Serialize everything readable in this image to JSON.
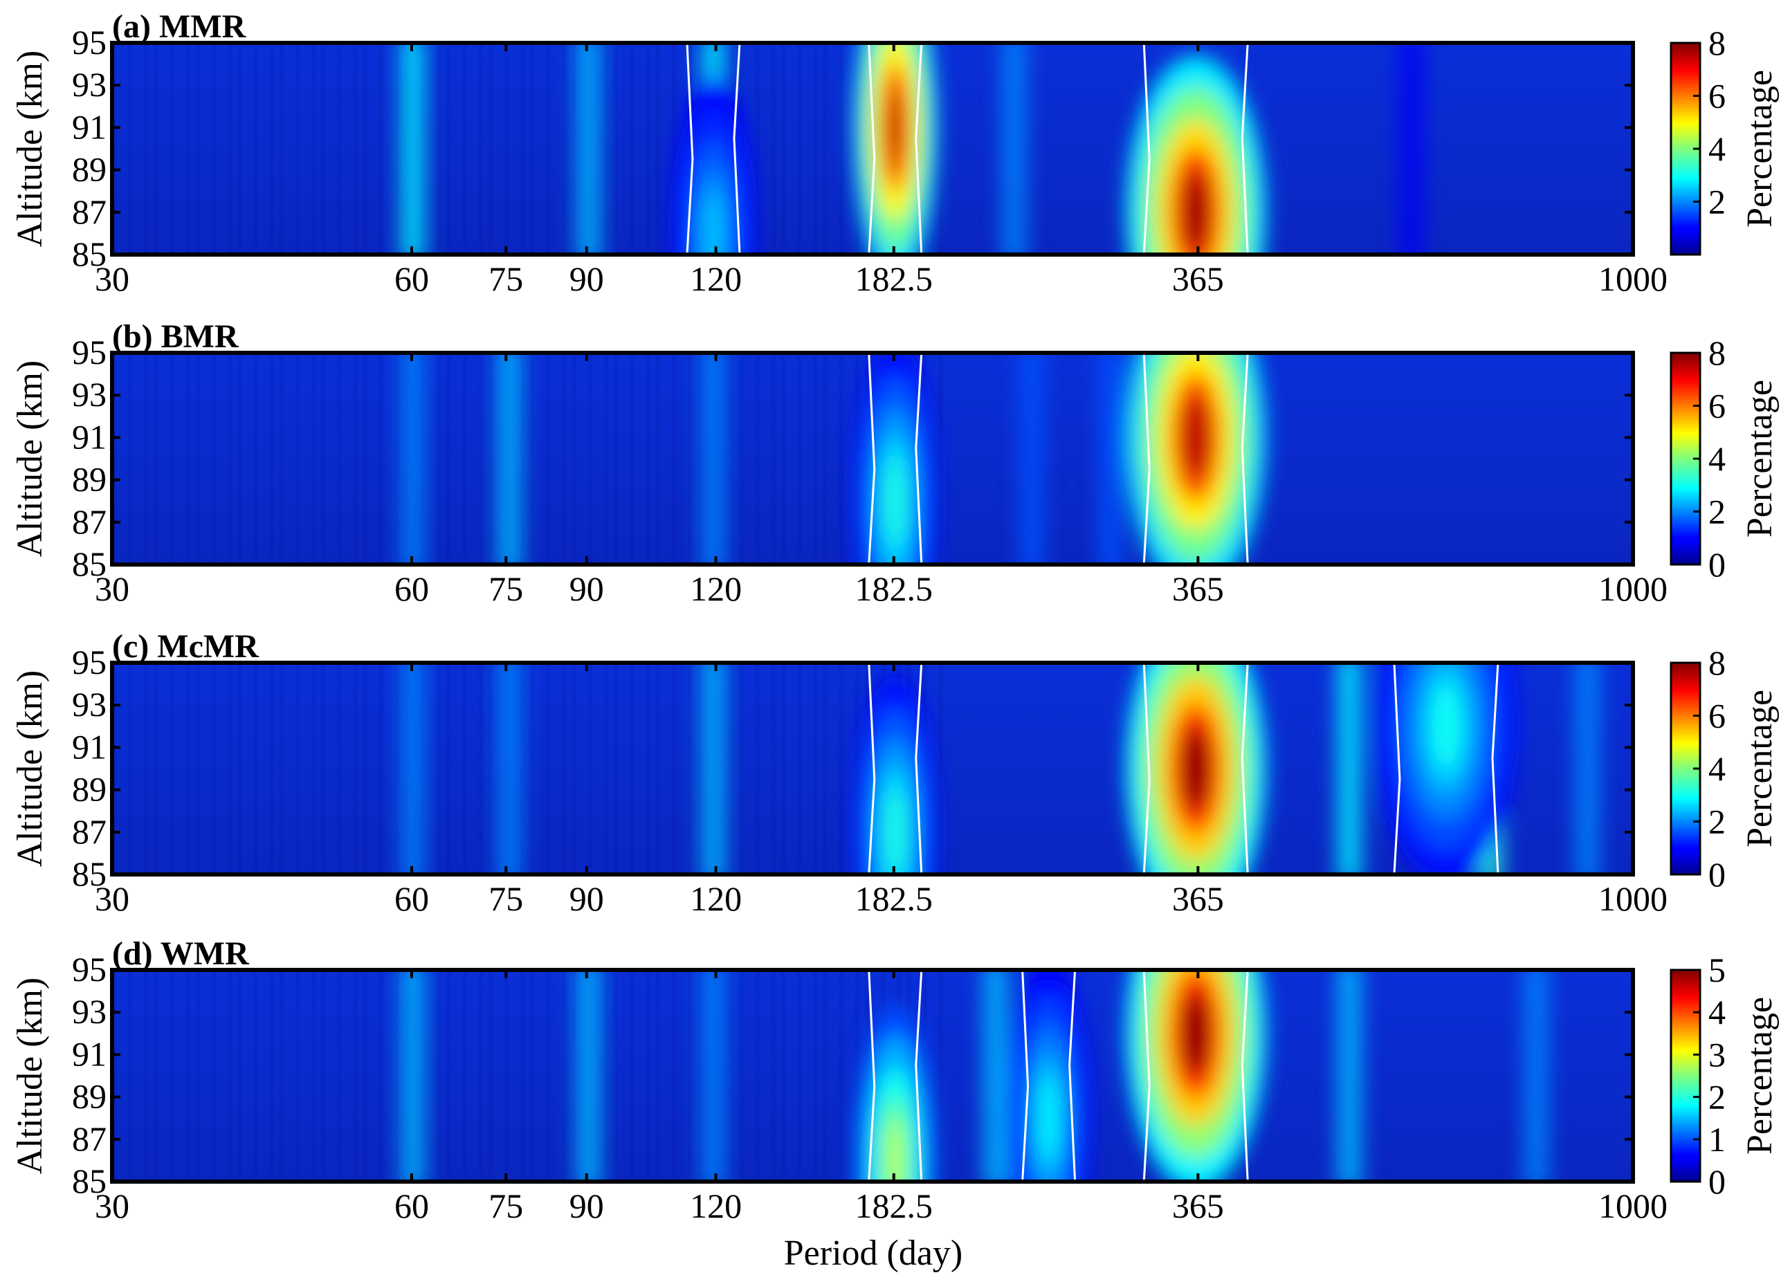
{
  "figure": {
    "xlabel": "Period (day)"
  },
  "chart_data": [
    {
      "type": "heatmap",
      "title": "(a) MMR",
      "ylabel": "Altitude (km)",
      "colorbar_label": "Percentage",
      "x_ticks": [
        "30",
        "60",
        "75",
        "90",
        "120",
        "182.5",
        "365",
        "1000"
      ],
      "y_ticks": [
        "85",
        "87",
        "89",
        "91",
        "93",
        "95"
      ],
      "cbar_ticks": [
        "2",
        "4",
        "6",
        "8"
      ],
      "xlim": [
        30,
        1000
      ],
      "ylim": [
        85,
        95
      ],
      "clim": [
        0,
        8
      ],
      "peaks": [
        {
          "period": 182.5,
          "altitude": 91,
          "value": 7.5
        },
        {
          "period": 365,
          "altitude": 87,
          "value": 7.8
        },
        {
          "period": 120,
          "altitude": 86,
          "value": 2.5
        }
      ]
    },
    {
      "type": "heatmap",
      "title": "(b) BMR",
      "ylabel": "Altitude (km)",
      "colorbar_label": "Percentage",
      "x_ticks": [
        "30",
        "60",
        "75",
        "90",
        "120",
        "182.5",
        "365",
        "1000"
      ],
      "y_ticks": [
        "85",
        "87",
        "89",
        "91",
        "93",
        "95"
      ],
      "cbar_ticks": [
        "0",
        "2",
        "4",
        "6",
        "8"
      ],
      "xlim": [
        30,
        1000
      ],
      "ylim": [
        85,
        95
      ],
      "clim": [
        0,
        8
      ],
      "peaks": [
        {
          "period": 365,
          "altitude": 91,
          "value": 7.6
        },
        {
          "period": 182.5,
          "altitude": 88,
          "value": 3.2
        }
      ]
    },
    {
      "type": "heatmap",
      "title": "(c) McMR",
      "ylabel": "Altitude (km)",
      "colorbar_label": "Percentage",
      "x_ticks": [
        "30",
        "60",
        "75",
        "90",
        "120",
        "182.5",
        "365",
        "1000"
      ],
      "y_ticks": [
        "85",
        "87",
        "89",
        "91",
        "93",
        "95"
      ],
      "cbar_ticks": [
        "0",
        "2",
        "4",
        "6",
        "8"
      ],
      "xlim": [
        30,
        1000
      ],
      "ylim": [
        85,
        95
      ],
      "clim": [
        0,
        8
      ],
      "peaks": [
        {
          "period": 365,
          "altitude": 90,
          "value": 8.0
        },
        {
          "period": 182.5,
          "altitude": 87,
          "value": 3.2
        },
        {
          "period": 650,
          "altitude": 92,
          "value": 3.0
        }
      ]
    },
    {
      "type": "heatmap",
      "title": "(d) WMR",
      "ylabel": "Altitude (km)",
      "colorbar_label": "Percentage",
      "x_ticks": [
        "30",
        "60",
        "75",
        "90",
        "120",
        "182.5",
        "365",
        "1000"
      ],
      "y_ticks": [
        "85",
        "87",
        "89",
        "91",
        "93",
        "95"
      ],
      "cbar_ticks": [
        "0",
        "1",
        "2",
        "3",
        "4",
        "5"
      ],
      "xlim": [
        30,
        1000
      ],
      "ylim": [
        85,
        95
      ],
      "clim": [
        0,
        5
      ],
      "peaks": [
        {
          "period": 365,
          "altitude": 92,
          "value": 5.0
        },
        {
          "period": 182.5,
          "altitude": 86,
          "value": 2.8
        },
        {
          "period": 260,
          "altitude": 88,
          "value": 1.8
        }
      ]
    }
  ]
}
